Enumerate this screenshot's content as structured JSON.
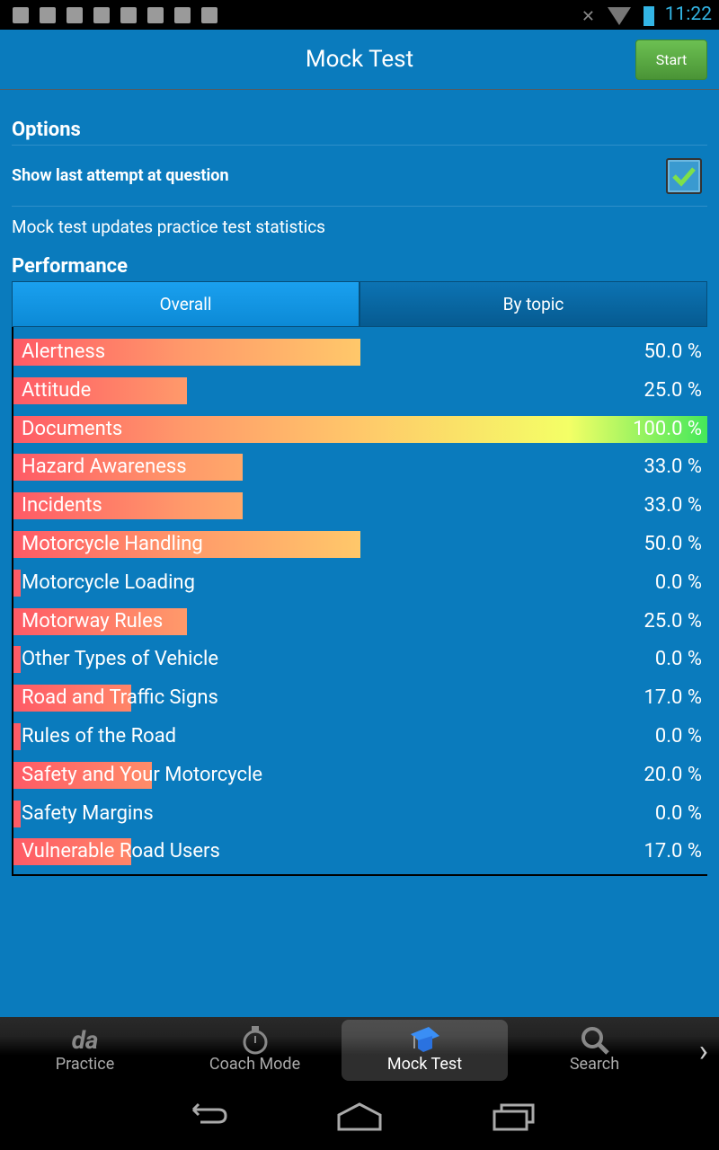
{
  "status": {
    "time": "11:22",
    "icons": [
      "wifi-question-icon",
      "download-phone-icon",
      "download-icon",
      "image-icon",
      "gmail-icon",
      "play-store-icon",
      "play-store-icon",
      "play-store-icon"
    ]
  },
  "header": {
    "title": "Mock Test",
    "start_label": "Start"
  },
  "options": {
    "heading": "Options",
    "show_last_label": "Show last attempt at question",
    "show_last_checked": true,
    "note": "Mock test updates practice test statistics"
  },
  "performance": {
    "heading": "Performance",
    "tabs": [
      {
        "label": "Overall",
        "selected": true
      },
      {
        "label": "By topic",
        "selected": false
      }
    ],
    "items": [
      {
        "label": "Alertness",
        "pct": "50.0 %",
        "value": 50
      },
      {
        "label": "Attitude",
        "pct": "25.0 %",
        "value": 25
      },
      {
        "label": "Documents",
        "pct": "100.0 %",
        "value": 100
      },
      {
        "label": "Hazard Awareness",
        "pct": "33.0 %",
        "value": 33
      },
      {
        "label": "Incidents",
        "pct": "33.0 %",
        "value": 33
      },
      {
        "label": "Motorcycle Handling",
        "pct": "50.0 %",
        "value": 50
      },
      {
        "label": "Motorcycle Loading",
        "pct": "0.0 %",
        "value": 0
      },
      {
        "label": "Motorway Rules",
        "pct": "25.0 %",
        "value": 25
      },
      {
        "label": "Other Types of Vehicle",
        "pct": "0.0 %",
        "value": 0
      },
      {
        "label": "Road and Traffic Signs",
        "pct": "17.0 %",
        "value": 17
      },
      {
        "label": "Rules of the Road",
        "pct": "0.0 %",
        "value": 0
      },
      {
        "label": "Safety and Your Motorcycle",
        "pct": "20.0 %",
        "value": 20
      },
      {
        "label": "Safety Margins",
        "pct": "0.0 %",
        "value": 0
      },
      {
        "label": "Vulnerable Road Users",
        "pct": "17.0 %",
        "value": 17
      }
    ]
  },
  "nav": {
    "items": [
      {
        "label": "Practice",
        "icon": "practice-icon"
      },
      {
        "label": "Coach Mode",
        "icon": "stopwatch-icon"
      },
      {
        "label": "Mock Test",
        "icon": "graduation-cap-icon",
        "selected": true
      },
      {
        "label": "Search",
        "icon": "search-icon"
      }
    ]
  },
  "colors": {
    "background": "#0a7bbd",
    "start": "#5aab44",
    "bar_low": "#ff5a66",
    "bar_high": "#44e85a"
  }
}
